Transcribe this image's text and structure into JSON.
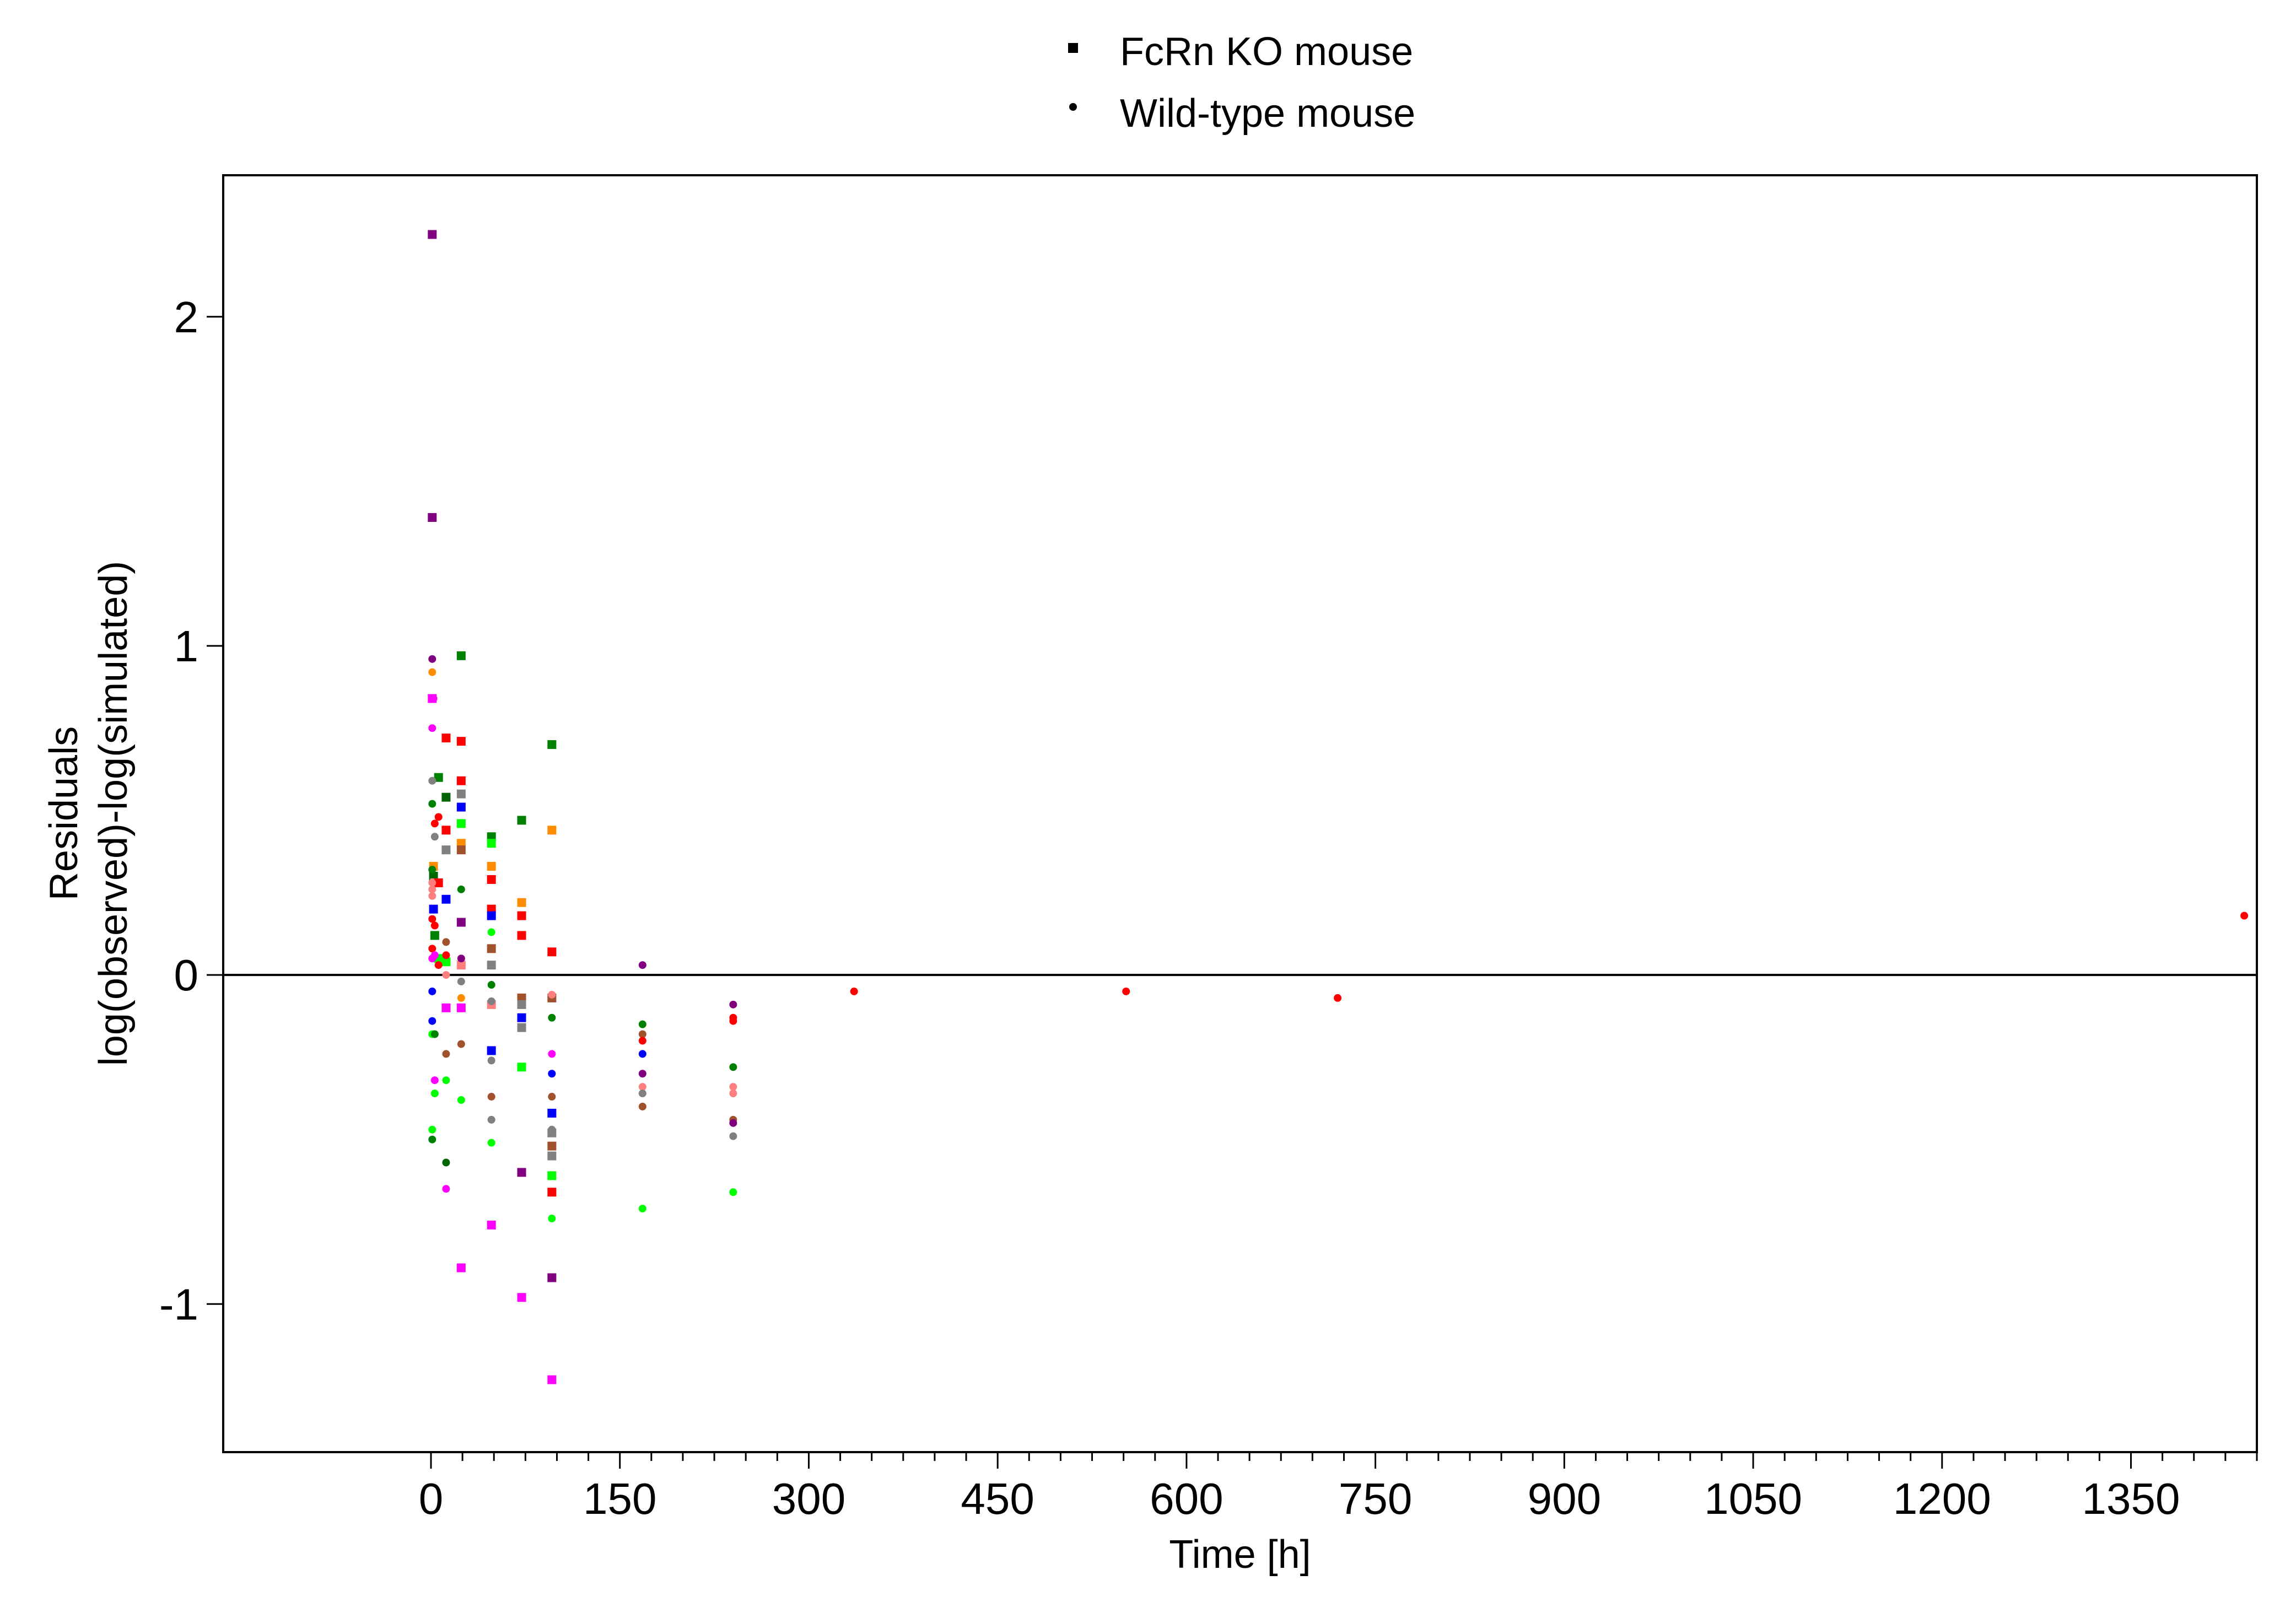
{
  "chart_data": {
    "type": "scatter",
    "xlabel": "Time [h]",
    "ylabel": [
      "Residuals",
      "log(observed)-log(simulated)"
    ],
    "xlim": [
      -165,
      1450
    ],
    "ylim": [
      -1.45,
      2.43
    ],
    "xticks": [
      0,
      150,
      300,
      450,
      600,
      750,
      900,
      1050,
      1200,
      1350
    ],
    "yticks": [
      -1,
      0,
      1,
      2
    ],
    "reference_line_y": 0,
    "grid": false,
    "legend_position": "top-center",
    "series": [
      {
        "name": "FcRn KO mouse",
        "marker": "square",
        "points": [
          {
            "x": 1,
            "y": 2.25,
            "color": "#800080"
          },
          {
            "x": 1,
            "y": 1.39,
            "color": "#800080"
          },
          {
            "x": 1,
            "y": 0.84,
            "color": "#FF00FF"
          },
          {
            "x": 2,
            "y": 0.33,
            "color": "#FF8C00"
          },
          {
            "x": 2,
            "y": 0.3,
            "color": "#006400"
          },
          {
            "x": 3,
            "y": 0.28,
            "color": "#FF7F7F"
          },
          {
            "x": 2,
            "y": 0.2,
            "color": "#0000FF"
          },
          {
            "x": 3,
            "y": 0.12,
            "color": "#008000"
          },
          {
            "x": 6,
            "y": 0.6,
            "color": "#008000"
          },
          {
            "x": 6,
            "y": 0.28,
            "color": "#FF0000"
          },
          {
            "x": 6,
            "y": 0.05,
            "color": "#00FF00"
          },
          {
            "x": 12,
            "y": 0.72,
            "color": "#FF0000"
          },
          {
            "x": 12,
            "y": 0.54,
            "color": "#006400"
          },
          {
            "x": 12,
            "y": 0.44,
            "color": "#FF0000"
          },
          {
            "x": 12,
            "y": 0.38,
            "color": "#808080"
          },
          {
            "x": 12,
            "y": 0.23,
            "color": "#0000FF"
          },
          {
            "x": 12,
            "y": 0.04,
            "color": "#00FF00"
          },
          {
            "x": 12,
            "y": -0.1,
            "color": "#FF00FF"
          },
          {
            "x": 24,
            "y": 0.97,
            "color": "#008000"
          },
          {
            "x": 24,
            "y": 0.71,
            "color": "#FF0000"
          },
          {
            "x": 24,
            "y": 0.59,
            "color": "#FF0000"
          },
          {
            "x": 24,
            "y": 0.55,
            "color": "#808080"
          },
          {
            "x": 24,
            "y": 0.51,
            "color": "#0000FF"
          },
          {
            "x": 24,
            "y": 0.46,
            "color": "#00FF00"
          },
          {
            "x": 24,
            "y": 0.4,
            "color": "#FF8C00"
          },
          {
            "x": 24,
            "y": 0.38,
            "color": "#A0522D"
          },
          {
            "x": 24,
            "y": 0.16,
            "color": "#800080"
          },
          {
            "x": 24,
            "y": 0.03,
            "color": "#FF7F7F"
          },
          {
            "x": 24,
            "y": -0.1,
            "color": "#FF00FF"
          },
          {
            "x": 24,
            "y": -0.89,
            "color": "#FF00FF"
          },
          {
            "x": 48,
            "y": 0.42,
            "color": "#008000"
          },
          {
            "x": 48,
            "y": 0.4,
            "color": "#00FF00"
          },
          {
            "x": 48,
            "y": 0.33,
            "color": "#FF8C00"
          },
          {
            "x": 48,
            "y": 0.29,
            "color": "#FF0000"
          },
          {
            "x": 48,
            "y": 0.2,
            "color": "#FF0000"
          },
          {
            "x": 48,
            "y": 0.18,
            "color": "#0000FF"
          },
          {
            "x": 48,
            "y": 0.08,
            "color": "#A0522D"
          },
          {
            "x": 48,
            "y": 0.03,
            "color": "#808080"
          },
          {
            "x": 48,
            "y": -0.09,
            "color": "#FF7F7F"
          },
          {
            "x": 48,
            "y": -0.23,
            "color": "#0000FF"
          },
          {
            "x": 48,
            "y": -0.76,
            "color": "#FF00FF"
          },
          {
            "x": 72,
            "y": 0.47,
            "color": "#008000"
          },
          {
            "x": 72,
            "y": 0.22,
            "color": "#FF8C00"
          },
          {
            "x": 72,
            "y": 0.18,
            "color": "#FF0000"
          },
          {
            "x": 72,
            "y": 0.12,
            "color": "#FF0000"
          },
          {
            "x": 72,
            "y": -0.07,
            "color": "#A0522D"
          },
          {
            "x": 72,
            "y": -0.09,
            "color": "#808080"
          },
          {
            "x": 72,
            "y": -0.13,
            "color": "#0000FF"
          },
          {
            "x": 72,
            "y": -0.16,
            "color": "#808080"
          },
          {
            "x": 72,
            "y": -0.28,
            "color": "#00FF00"
          },
          {
            "x": 72,
            "y": -0.6,
            "color": "#800080"
          },
          {
            "x": 72,
            "y": -0.98,
            "color": "#FF00FF"
          },
          {
            "x": 96,
            "y": 0.7,
            "color": "#008000"
          },
          {
            "x": 96,
            "y": 0.44,
            "color": "#FF8C00"
          },
          {
            "x": 96,
            "y": 0.07,
            "color": "#FF0000"
          },
          {
            "x": 96,
            "y": -0.07,
            "color": "#A0522D"
          },
          {
            "x": 96,
            "y": -0.42,
            "color": "#0000FF"
          },
          {
            "x": 96,
            "y": -0.48,
            "color": "#808080"
          },
          {
            "x": 96,
            "y": -0.52,
            "color": "#A0522D"
          },
          {
            "x": 96,
            "y": -0.55,
            "color": "#808080"
          },
          {
            "x": 96,
            "y": -0.61,
            "color": "#00FF00"
          },
          {
            "x": 96,
            "y": -0.66,
            "color": "#FF0000"
          },
          {
            "x": 96,
            "y": -0.92,
            "color": "#800080"
          },
          {
            "x": 96,
            "y": -1.23,
            "color": "#FF00FF"
          }
        ]
      },
      {
        "name": "Wild-type mouse",
        "marker": "circle",
        "points": [
          {
            "x": 1,
            "y": 0.96,
            "color": "#800080"
          },
          {
            "x": 1,
            "y": 0.92,
            "color": "#FF8C00"
          },
          {
            "x": 2,
            "y": 0.84,
            "color": "#FF00FF"
          },
          {
            "x": 1,
            "y": 0.75,
            "color": "#FF00FF"
          },
          {
            "x": 1,
            "y": 0.59,
            "color": "#808080"
          },
          {
            "x": 1,
            "y": 0.52,
            "color": "#008000"
          },
          {
            "x": 1,
            "y": 0.32,
            "color": "#008000"
          },
          {
            "x": 1,
            "y": 0.28,
            "color": "#FF7F7F"
          },
          {
            "x": 1,
            "y": 0.26,
            "color": "#FF7F7F"
          },
          {
            "x": 1,
            "y": 0.24,
            "color": "#FF7F7F"
          },
          {
            "x": 1,
            "y": 0.17,
            "color": "#FF0000"
          },
          {
            "x": 1,
            "y": 0.08,
            "color": "#FF0000"
          },
          {
            "x": 1,
            "y": 0.05,
            "color": "#FF00FF"
          },
          {
            "x": 1,
            "y": -0.05,
            "color": "#0000FF"
          },
          {
            "x": 1,
            "y": -0.14,
            "color": "#0000FF"
          },
          {
            "x": 1,
            "y": -0.18,
            "color": "#00FF00"
          },
          {
            "x": 1,
            "y": -0.47,
            "color": "#00FF00"
          },
          {
            "x": 1,
            "y": -0.5,
            "color": "#008000"
          },
          {
            "x": 3,
            "y": 0.46,
            "color": "#FF0000"
          },
          {
            "x": 3,
            "y": 0.42,
            "color": "#808080"
          },
          {
            "x": 3,
            "y": 0.15,
            "color": "#FF0000"
          },
          {
            "x": 3,
            "y": 0.06,
            "color": "#FF00FF"
          },
          {
            "x": 3,
            "y": -0.18,
            "color": "#008000"
          },
          {
            "x": 3,
            "y": -0.32,
            "color": "#FF00FF"
          },
          {
            "x": 3,
            "y": -0.36,
            "color": "#00FF00"
          },
          {
            "x": 6,
            "y": 0.48,
            "color": "#FF0000"
          },
          {
            "x": 6,
            "y": 0.03,
            "color": "#FF0000"
          },
          {
            "x": 12,
            "y": 0.1,
            "color": "#A0522D"
          },
          {
            "x": 12,
            "y": 0.06,
            "color": "#FF0000"
          },
          {
            "x": 12,
            "y": 0.0,
            "color": "#FF7F7F"
          },
          {
            "x": 12,
            "y": -0.24,
            "color": "#A0522D"
          },
          {
            "x": 12,
            "y": -0.32,
            "color": "#00FF00"
          },
          {
            "x": 12,
            "y": -0.57,
            "color": "#006400"
          },
          {
            "x": 12,
            "y": -0.65,
            "color": "#FF00FF"
          },
          {
            "x": 24,
            "y": 0.26,
            "color": "#008000"
          },
          {
            "x": 24,
            "y": 0.05,
            "color": "#800080"
          },
          {
            "x": 24,
            "y": -0.02,
            "color": "#808080"
          },
          {
            "x": 24,
            "y": -0.07,
            "color": "#FF8C00"
          },
          {
            "x": 24,
            "y": -0.21,
            "color": "#A0522D"
          },
          {
            "x": 24,
            "y": -0.38,
            "color": "#00FF00"
          },
          {
            "x": 48,
            "y": 0.13,
            "color": "#00FF00"
          },
          {
            "x": 48,
            "y": -0.03,
            "color": "#008000"
          },
          {
            "x": 48,
            "y": -0.08,
            "color": "#808080"
          },
          {
            "x": 48,
            "y": -0.26,
            "color": "#808080"
          },
          {
            "x": 48,
            "y": -0.37,
            "color": "#A0522D"
          },
          {
            "x": 48,
            "y": -0.44,
            "color": "#808080"
          },
          {
            "x": 48,
            "y": -0.51,
            "color": "#00FF00"
          },
          {
            "x": 96,
            "y": -0.06,
            "color": "#FF7F7F"
          },
          {
            "x": 96,
            "y": -0.13,
            "color": "#008000"
          },
          {
            "x": 96,
            "y": -0.24,
            "color": "#FF00FF"
          },
          {
            "x": 96,
            "y": -0.3,
            "color": "#0000FF"
          },
          {
            "x": 96,
            "y": -0.37,
            "color": "#A0522D"
          },
          {
            "x": 96,
            "y": -0.47,
            "color": "#808080"
          },
          {
            "x": 96,
            "y": -0.74,
            "color": "#00FF00"
          },
          {
            "x": 168,
            "y": 0.03,
            "color": "#800080"
          },
          {
            "x": 168,
            "y": -0.15,
            "color": "#008000"
          },
          {
            "x": 168,
            "y": -0.18,
            "color": "#A0522D"
          },
          {
            "x": 168,
            "y": -0.2,
            "color": "#FF0000"
          },
          {
            "x": 168,
            "y": -0.24,
            "color": "#0000FF"
          },
          {
            "x": 168,
            "y": -0.3,
            "color": "#800080"
          },
          {
            "x": 168,
            "y": -0.34,
            "color": "#FF7F7F"
          },
          {
            "x": 168,
            "y": -0.36,
            "color": "#808080"
          },
          {
            "x": 168,
            "y": -0.4,
            "color": "#A0522D"
          },
          {
            "x": 168,
            "y": -0.71,
            "color": "#00FF00"
          },
          {
            "x": 240,
            "y": -0.09,
            "color": "#800080"
          },
          {
            "x": 240,
            "y": -0.13,
            "color": "#FF0000"
          },
          {
            "x": 240,
            "y": -0.14,
            "color": "#FF0000"
          },
          {
            "x": 240,
            "y": -0.28,
            "color": "#008000"
          },
          {
            "x": 240,
            "y": -0.34,
            "color": "#FF7F7F"
          },
          {
            "x": 240,
            "y": -0.36,
            "color": "#FF7F7F"
          },
          {
            "x": 240,
            "y": -0.44,
            "color": "#A0522D"
          },
          {
            "x": 240,
            "y": -0.45,
            "color": "#800080"
          },
          {
            "x": 240,
            "y": -0.49,
            "color": "#808080"
          },
          {
            "x": 240,
            "y": -0.66,
            "color": "#00FF00"
          },
          {
            "x": 336,
            "y": -0.05,
            "color": "#FF0000"
          },
          {
            "x": 552,
            "y": -0.05,
            "color": "#FF0000"
          },
          {
            "x": 720,
            "y": -0.07,
            "color": "#FF0000"
          },
          {
            "x": 1440,
            "y": 0.18,
            "color": "#FF0000"
          }
        ]
      }
    ]
  }
}
